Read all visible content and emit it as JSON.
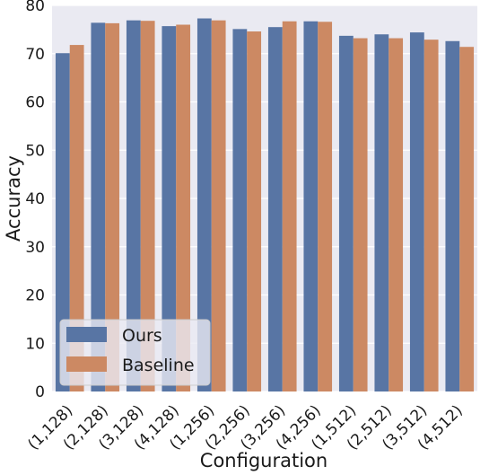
{
  "chart_data": {
    "type": "bar",
    "title": "",
    "xlabel": "Configuration",
    "ylabel": "Accuracy",
    "ylim": [
      0,
      80
    ],
    "yticks": [
      0,
      10,
      20,
      30,
      40,
      50,
      60,
      70,
      80
    ],
    "categories": [
      "(1,128)",
      "(2,128)",
      "(3,128)",
      "(4,128)",
      "(1,256)",
      "(2,256)",
      "(3,256)",
      "(4,256)",
      "(1,512)",
      "(2,512)",
      "(3,512)",
      "(4,512)"
    ],
    "series": [
      {
        "name": "Ours",
        "color": "#5875a4",
        "values": [
          70.1,
          76.4,
          76.9,
          75.7,
          77.3,
          75.1,
          75.5,
          76.7,
          73.7,
          74.0,
          74.4,
          72.6
        ]
      },
      {
        "name": "Baseline",
        "color": "#cc8963",
        "values": [
          71.8,
          76.3,
          76.8,
          76.0,
          76.9,
          74.6,
          76.7,
          76.6,
          73.2,
          73.2,
          72.9,
          71.4
        ]
      }
    ],
    "grid": true,
    "legend": "lower-left",
    "background_color": "#eaeaf2"
  }
}
